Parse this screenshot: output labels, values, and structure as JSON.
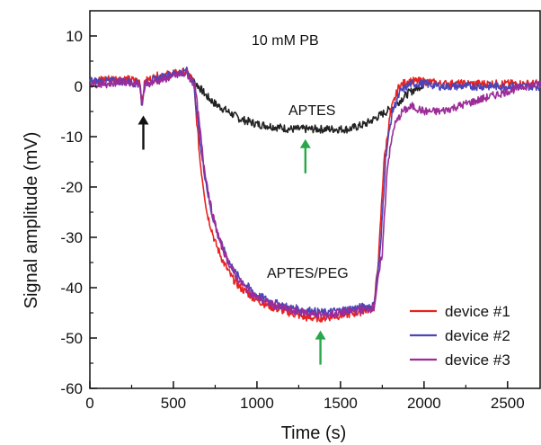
{
  "chart_data": {
    "type": "line",
    "title": "10 mM PB",
    "xlabel": "Time (s)",
    "ylabel": "Signal amplitude (mV)",
    "xlim": [
      0,
      2700
    ],
    "ylim": [
      -60,
      15
    ],
    "x_ticks": [
      "0",
      "500",
      "1000",
      "1500",
      "2000",
      "2500"
    ],
    "y_ticks": [
      "10",
      "0",
      "-10",
      "-20",
      "-30",
      "-40",
      "-50",
      "-60"
    ],
    "x_tick_values": [
      0,
      500,
      1000,
      1500,
      2000,
      2500
    ],
    "y_tick_values": [
      10,
      0,
      -10,
      -20,
      -30,
      -40,
      -50,
      -60
    ],
    "grid": false,
    "legend_position": "bottom-right",
    "colors": {
      "device1": "#e8231f",
      "device2": "#4a45b8",
      "device3": "#9b2c98",
      "aptes": "#222222",
      "arrow_black": "#111111",
      "arrow_green": "#27a84a"
    },
    "annotations": {
      "aptes": "APTES",
      "aptes_peg": "APTES/PEG",
      "arrow_black_x": 320,
      "arrow_black_y": -3,
      "arrow_green_aptes_x": 1290,
      "arrow_green_aptes_y": -10,
      "arrow_green_peg_x": 1380,
      "arrow_green_peg_y": -48
    },
    "series": [
      {
        "name": "device #1",
        "color": "#e8231f",
        "x": [
          0,
          100,
          200,
          300,
          310,
          330,
          400,
          500,
          580,
          620,
          660,
          700,
          750,
          800,
          850,
          900,
          1000,
          1100,
          1200,
          1300,
          1400,
          1500,
          1600,
          1700,
          1730,
          1760,
          1800,
          1850,
          1900,
          2000,
          2100,
          2200,
          2300,
          2400,
          2500,
          2600,
          2700
        ],
        "values": [
          1,
          1.5,
          1.5,
          1,
          -3,
          1,
          2,
          2.5,
          3,
          1,
          -15,
          -25,
          -31,
          -35,
          -38,
          -40,
          -42.5,
          -44,
          -45,
          -46,
          -46,
          -45.5,
          -45,
          -44,
          -33,
          -15,
          -5,
          0,
          1,
          1,
          0.5,
          0.5,
          0.5,
          0.5,
          0.5,
          0.5,
          0.5
        ]
      },
      {
        "name": "device #2",
        "color": "#4a45b8",
        "x": [
          0,
          100,
          200,
          300,
          310,
          330,
          400,
          500,
          580,
          620,
          670,
          720,
          770,
          820,
          870,
          920,
          1000,
          1100,
          1200,
          1300,
          1400,
          1500,
          1600,
          1700,
          1740,
          1770,
          1810,
          1860,
          1920,
          2000,
          2100,
          2200,
          2300,
          2400,
          2500,
          2600,
          2700
        ],
        "values": [
          1,
          1,
          1,
          0.5,
          -4,
          0.5,
          1.5,
          2.5,
          3,
          1,
          -14,
          -24,
          -30,
          -34,
          -37,
          -39,
          -41.5,
          -43,
          -44,
          -44.5,
          -45,
          -44.5,
          -44,
          -43.5,
          -32,
          -14,
          -5,
          -1,
          0.5,
          0.5,
          0,
          0,
          0,
          0,
          0,
          0,
          0
        ]
      },
      {
        "name": "device #3",
        "color": "#9b2c98",
        "x": [
          0,
          100,
          200,
          300,
          310,
          330,
          400,
          500,
          580,
          630,
          680,
          730,
          780,
          830,
          880,
          930,
          1000,
          1100,
          1200,
          1300,
          1400,
          1500,
          1600,
          1700,
          1750,
          1780,
          1820,
          1870,
          1930,
          2000,
          2100,
          2200,
          2300,
          2400,
          2500,
          2600,
          2700
        ],
        "values": [
          0.5,
          0.5,
          1,
          0.5,
          -4,
          0.5,
          1,
          2,
          2.5,
          0,
          -15,
          -25,
          -31,
          -35,
          -38,
          -40,
          -42,
          -43.5,
          -44.5,
          -45,
          -45.5,
          -45,
          -44.5,
          -44,
          -33,
          -16,
          -8,
          -5,
          -4,
          -5,
          -5,
          -4,
          -3,
          -2,
          -1,
          0,
          0.5
        ]
      },
      {
        "name": "APTES",
        "color": "#222222",
        "x": [
          580,
          650,
          700,
          750,
          800,
          850,
          900,
          1000,
          1100,
          1200,
          1300,
          1400,
          1500,
          1550,
          1600,
          1650,
          1700,
          1750,
          1800,
          1850,
          1900,
          1950,
          2000
        ],
        "values": [
          2.5,
          0,
          -2,
          -3.5,
          -4.5,
          -5.5,
          -6.5,
          -7.5,
          -8,
          -8.5,
          -8.5,
          -8.5,
          -8.5,
          -8.5,
          -8,
          -7.5,
          -6.5,
          -5.5,
          -4.5,
          -3,
          -1.5,
          -0.5,
          0.5
        ]
      }
    ]
  }
}
